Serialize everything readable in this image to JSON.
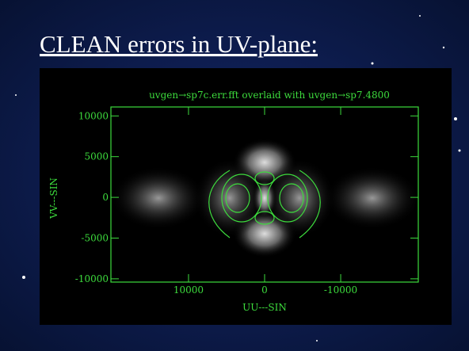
{
  "title": "CLEAN errors in UV-plane:",
  "chart_data": {
    "type": "contour",
    "title": "uvgen→sp7c.err.fft overlaid with uvgen→sp7.4800",
    "xlabel": "UU---SIN",
    "ylabel": "VV---SIN",
    "xlim": [
      20200,
      -20200
    ],
    "ylim": [
      -10400,
      11100
    ],
    "xticks": [
      10000,
      0,
      -10000
    ],
    "yticks": [
      10000,
      5000,
      0,
      -5000,
      -10000
    ],
    "color": "#3ddc3d"
  }
}
